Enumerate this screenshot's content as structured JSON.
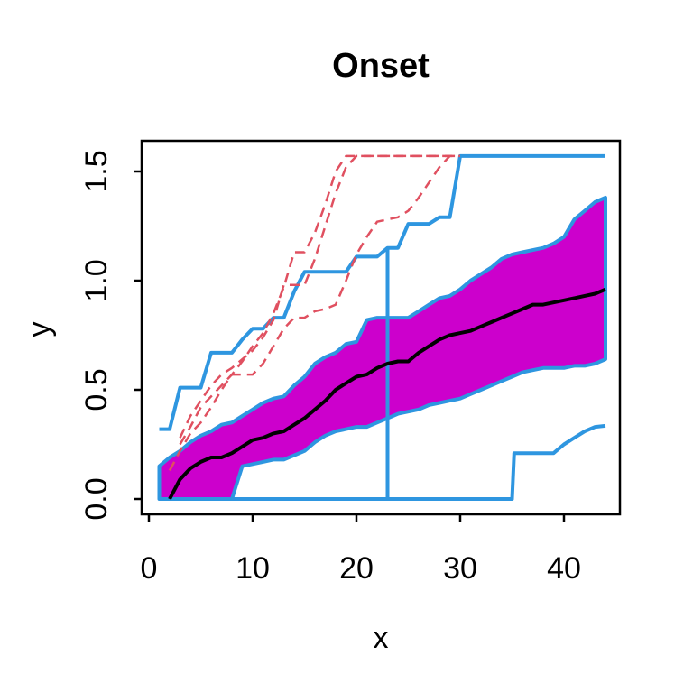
{
  "chart_data": {
    "type": "line",
    "title": "Onset",
    "xlabel": "x",
    "ylabel": "y",
    "xlim": [
      1,
      44
    ],
    "ylim": [
      0,
      1.5708
    ],
    "grid": false,
    "legend": null,
    "x_axis": {
      "ticks": [
        {
          "value": 0,
          "label": "0"
        },
        {
          "value": 10,
          "label": "10"
        },
        {
          "value": 20,
          "label": "20"
        },
        {
          "value": 30,
          "label": "30"
        },
        {
          "value": 40,
          "label": "40"
        }
      ]
    },
    "y_axis": {
      "ticks": [
        {
          "value": 0.0,
          "label": "0.0"
        },
        {
          "value": 0.5,
          "label": "0.5"
        },
        {
          "value": 1.0,
          "label": "1.0"
        },
        {
          "value": 1.5,
          "label": "1.5"
        }
      ]
    },
    "colors": {
      "band_fill": "#CC00CC",
      "envelope": "#2E96E0",
      "median": "#000000",
      "outliers": "#E05060",
      "frame": "#000000"
    },
    "series": [
      {
        "name": "central-band",
        "kind": "band",
        "fill": "#CC00CC",
        "stroke": "#2E96E0",
        "width": 4,
        "upper": [
          [
            1,
            0.15
          ],
          [
            2,
            0.19
          ],
          [
            3,
            0.22
          ],
          [
            4,
            0.26
          ],
          [
            5,
            0.29
          ],
          [
            6,
            0.31
          ],
          [
            7,
            0.34
          ],
          [
            8,
            0.35
          ],
          [
            9,
            0.38
          ],
          [
            10,
            0.41
          ],
          [
            11,
            0.44
          ],
          [
            12,
            0.46
          ],
          [
            13,
            0.47
          ],
          [
            14,
            0.52
          ],
          [
            15,
            0.56
          ],
          [
            16,
            0.62
          ],
          [
            17,
            0.65
          ],
          [
            18,
            0.67
          ],
          [
            19,
            0.71
          ],
          [
            20,
            0.72
          ],
          [
            21,
            0.82
          ],
          [
            22,
            0.83
          ],
          [
            23,
            0.83
          ],
          [
            24,
            0.83
          ],
          [
            25,
            0.83
          ],
          [
            26,
            0.86
          ],
          [
            27,
            0.89
          ],
          [
            28,
            0.92
          ],
          [
            29,
            0.93
          ],
          [
            30,
            0.96
          ],
          [
            31,
            1.0
          ],
          [
            32,
            1.03
          ],
          [
            33,
            1.06
          ],
          [
            34,
            1.1
          ],
          [
            35,
            1.12
          ],
          [
            36,
            1.13
          ],
          [
            37,
            1.14
          ],
          [
            38,
            1.15
          ],
          [
            39,
            1.17
          ],
          [
            40,
            1.2
          ],
          [
            41,
            1.28
          ],
          [
            42,
            1.32
          ],
          [
            43,
            1.36
          ],
          [
            44,
            1.38
          ]
        ],
        "lower": [
          [
            1,
            0
          ],
          [
            8,
            0
          ],
          [
            9,
            0.15
          ],
          [
            10,
            0.16
          ],
          [
            11,
            0.17
          ],
          [
            12,
            0.18
          ],
          [
            13,
            0.18
          ],
          [
            14,
            0.2
          ],
          [
            15,
            0.22
          ],
          [
            16,
            0.26
          ],
          [
            17,
            0.29
          ],
          [
            18,
            0.31
          ],
          [
            19,
            0.32
          ],
          [
            20,
            0.33
          ],
          [
            21,
            0.33
          ],
          [
            22,
            0.35
          ],
          [
            23,
            0.37
          ],
          [
            24,
            0.39
          ],
          [
            25,
            0.4
          ],
          [
            26,
            0.41
          ],
          [
            27,
            0.43
          ],
          [
            28,
            0.44
          ],
          [
            29,
            0.45
          ],
          [
            30,
            0.46
          ],
          [
            31,
            0.48
          ],
          [
            32,
            0.5
          ],
          [
            33,
            0.52
          ],
          [
            34,
            0.54
          ],
          [
            35,
            0.56
          ],
          [
            36,
            0.58
          ],
          [
            37,
            0.59
          ],
          [
            38,
            0.6
          ],
          [
            39,
            0.6
          ],
          [
            40,
            0.6
          ],
          [
            41,
            0.61
          ],
          [
            42,
            0.61
          ],
          [
            43,
            0.62
          ],
          [
            44,
            0.64
          ]
        ]
      },
      {
        "name": "whisker-bar",
        "kind": "line",
        "stroke": "#2E96E0",
        "width": 4,
        "points": [
          [
            23,
            0
          ],
          [
            23,
            1.15
          ]
        ]
      },
      {
        "name": "upper-envelope",
        "kind": "line",
        "stroke": "#2E96E0",
        "width": 4,
        "points": [
          [
            1,
            0.32
          ],
          [
            2,
            0.32
          ],
          [
            3,
            0.51
          ],
          [
            4,
            0.51
          ],
          [
            5,
            0.51
          ],
          [
            6,
            0.67
          ],
          [
            7,
            0.67
          ],
          [
            8,
            0.67
          ],
          [
            9,
            0.73
          ],
          [
            10,
            0.78
          ],
          [
            11,
            0.78
          ],
          [
            12,
            0.83
          ],
          [
            13,
            0.83
          ],
          [
            14,
            0.95
          ],
          [
            15,
            1.04
          ],
          [
            16,
            1.04
          ],
          [
            17,
            1.04
          ],
          [
            18,
            1.04
          ],
          [
            19,
            1.04
          ],
          [
            20,
            1.11
          ],
          [
            21,
            1.11
          ],
          [
            22,
            1.11
          ],
          [
            23,
            1.15
          ],
          [
            24,
            1.15
          ],
          [
            25,
            1.26
          ],
          [
            26,
            1.26
          ],
          [
            27,
            1.26
          ],
          [
            28,
            1.29
          ],
          [
            29,
            1.29
          ],
          [
            30,
            1.5708
          ],
          [
            44,
            1.5708
          ]
        ]
      },
      {
        "name": "lower-envelope",
        "kind": "line",
        "stroke": "#2E96E0",
        "width": 4,
        "points": [
          [
            1,
            0
          ],
          [
            35,
            0
          ],
          [
            35.2,
            0.21
          ],
          [
            39,
            0.21
          ],
          [
            40,
            0.25
          ],
          [
            41,
            0.28
          ],
          [
            42,
            0.31
          ],
          [
            43,
            0.33
          ],
          [
            44,
            0.335
          ]
        ]
      },
      {
        "name": "outlier-curve-1",
        "kind": "line",
        "stroke": "#E05060",
        "width": 2.5,
        "dash": "11 7",
        "points": [
          [
            3,
            0.25
          ],
          [
            4,
            0.33
          ],
          [
            5,
            0.42
          ],
          [
            6,
            0.47
          ],
          [
            7,
            0.52
          ],
          [
            8,
            0.57
          ],
          [
            9,
            0.63
          ],
          [
            10,
            0.7
          ],
          [
            11,
            0.76
          ],
          [
            12,
            0.85
          ],
          [
            13,
            0.97
          ],
          [
            14,
            1.13
          ],
          [
            15,
            1.13
          ],
          [
            16,
            1.22
          ],
          [
            17,
            1.35
          ],
          [
            18,
            1.5
          ],
          [
            19,
            1.5708
          ],
          [
            30,
            1.5708
          ]
        ]
      },
      {
        "name": "outlier-curve-2",
        "kind": "line",
        "stroke": "#E05060",
        "width": 2.5,
        "dash": "11 7",
        "points": [
          [
            3,
            0.28
          ],
          [
            4,
            0.38
          ],
          [
            5,
            0.45
          ],
          [
            6,
            0.52
          ],
          [
            7,
            0.57
          ],
          [
            8,
            0.6
          ],
          [
            9,
            0.64
          ],
          [
            10,
            0.68
          ],
          [
            11,
            0.74
          ],
          [
            12,
            0.82
          ],
          [
            13,
            0.98
          ],
          [
            14,
            0.98
          ],
          [
            15,
            0.98
          ],
          [
            16,
            1.1
          ],
          [
            17,
            1.25
          ],
          [
            18,
            1.4
          ],
          [
            19,
            1.52
          ],
          [
            20,
            1.5708
          ],
          [
            30,
            1.5708
          ]
        ]
      },
      {
        "name": "outlier-curve-3",
        "kind": "line",
        "stroke": "#E05060",
        "width": 2.5,
        "dash": "11 7",
        "points": [
          [
            2,
            0.13
          ],
          [
            3,
            0.22
          ],
          [
            4,
            0.3
          ],
          [
            5,
            0.35
          ],
          [
            6,
            0.42
          ],
          [
            7,
            0.5
          ],
          [
            8,
            0.57
          ],
          [
            9,
            0.57
          ],
          [
            10,
            0.57
          ],
          [
            11,
            0.62
          ],
          [
            12,
            0.7
          ],
          [
            13,
            0.78
          ],
          [
            14,
            0.83
          ],
          [
            15,
            0.83
          ],
          [
            16,
            0.86
          ],
          [
            17,
            0.87
          ],
          [
            18,
            0.89
          ],
          [
            19,
            1.0
          ],
          [
            20,
            1.12
          ],
          [
            21,
            1.2
          ],
          [
            22,
            1.27
          ],
          [
            23,
            1.28
          ],
          [
            24,
            1.29
          ],
          [
            25,
            1.32
          ],
          [
            26,
            1.38
          ],
          [
            27,
            1.45
          ],
          [
            28,
            1.52
          ],
          [
            29,
            1.5708
          ]
        ]
      },
      {
        "name": "median-curve",
        "kind": "line",
        "stroke": "#000000",
        "width": 4,
        "points": [
          [
            2,
            0
          ],
          [
            3,
            0.09
          ],
          [
            4,
            0.14
          ],
          [
            5,
            0.17
          ],
          [
            6,
            0.19
          ],
          [
            7,
            0.19
          ],
          [
            8,
            0.21
          ],
          [
            9,
            0.24
          ],
          [
            10,
            0.27
          ],
          [
            11,
            0.28
          ],
          [
            12,
            0.3
          ],
          [
            13,
            0.31
          ],
          [
            14,
            0.34
          ],
          [
            15,
            0.37
          ],
          [
            16,
            0.41
          ],
          [
            17,
            0.45
          ],
          [
            18,
            0.5
          ],
          [
            19,
            0.53
          ],
          [
            20,
            0.56
          ],
          [
            21,
            0.57
          ],
          [
            22,
            0.6
          ],
          [
            23,
            0.62
          ],
          [
            24,
            0.63
          ],
          [
            25,
            0.63
          ],
          [
            26,
            0.67
          ],
          [
            27,
            0.7
          ],
          [
            28,
            0.73
          ],
          [
            29,
            0.75
          ],
          [
            30,
            0.76
          ],
          [
            31,
            0.77
          ],
          [
            32,
            0.79
          ],
          [
            33,
            0.81
          ],
          [
            34,
            0.83
          ],
          [
            35,
            0.85
          ],
          [
            36,
            0.87
          ],
          [
            37,
            0.89
          ],
          [
            38,
            0.89
          ],
          [
            39,
            0.9
          ],
          [
            40,
            0.91
          ],
          [
            41,
            0.92
          ],
          [
            42,
            0.93
          ],
          [
            43,
            0.94
          ],
          [
            44,
            0.96
          ]
        ]
      }
    ]
  }
}
